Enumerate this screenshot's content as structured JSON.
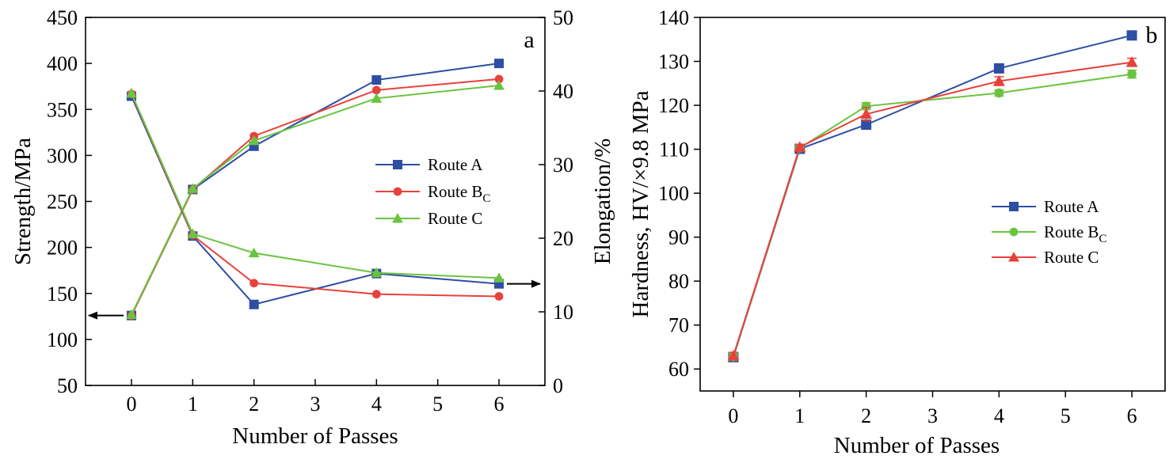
{
  "chart_data": [
    {
      "type": "line",
      "panel_label": "a",
      "x_positions": [
        0,
        1,
        2,
        4,
        6
      ],
      "xlabel": "Number of Passes",
      "xlim": [
        -0.75,
        6.75
      ],
      "x_ticks": [
        "0",
        "1",
        "2",
        "3",
        "4",
        "5",
        "6"
      ],
      "ylabel": "Strength/MPa",
      "ylim": [
        50,
        450
      ],
      "y_ticks": [
        "50",
        "100",
        "150",
        "200",
        "250",
        "300",
        "350",
        "400",
        "450"
      ],
      "y2label": "Elongation/%",
      "y2lim": [
        0,
        50
      ],
      "y2_ticks": [
        "0",
        "10",
        "20",
        "30",
        "40",
        "50"
      ],
      "legend": {
        "placement": "center-right",
        "entries": [
          {
            "text": "Route A",
            "sub": ""
          },
          {
            "text": "Route B",
            "sub": "C"
          },
          {
            "text": "Route C",
            "sub": ""
          }
        ]
      },
      "series": [
        {
          "name": "Route A",
          "axis": "left",
          "group": "strength",
          "color": "#2e4ea3",
          "marker": "square",
          "values": [
            126,
            263,
            310,
            382,
            400
          ]
        },
        {
          "name": "Route B_C",
          "axis": "left",
          "group": "strength",
          "color": "#e8413b",
          "marker": "circle",
          "values": [
            126,
            263,
            321,
            371,
            383
          ]
        },
        {
          "name": "Route C",
          "axis": "left",
          "group": "strength",
          "color": "#6ac43f",
          "marker": "triangle",
          "values": [
            127,
            264,
            316,
            362,
            376
          ]
        },
        {
          "name": "Route A",
          "axis": "right",
          "group": "elongation",
          "color": "#2e4ea3",
          "marker": "square",
          "values": [
            39.3,
            20.3,
            11.0,
            15.2,
            13.8
          ]
        },
        {
          "name": "Route B_C",
          "axis": "right",
          "group": "elongation",
          "color": "#e8413b",
          "marker": "circle",
          "values": [
            39.6,
            20.4,
            13.9,
            12.4,
            12.1
          ]
        },
        {
          "name": "Route C",
          "axis": "right",
          "group": "elongation",
          "color": "#6ac43f",
          "marker": "triangle",
          "values": [
            39.7,
            20.6,
            18.0,
            15.3,
            14.6
          ]
        }
      ],
      "arrows": [
        {
          "target_axis": "left",
          "from": [
            0,
            126
          ],
          "to": [
            -0.75,
            126
          ]
        },
        {
          "target_axis": "right",
          "from": [
            6.0,
            13.8
          ],
          "to": [
            6.75,
            13.8
          ]
        }
      ]
    },
    {
      "type": "line",
      "panel_label": "b",
      "x_positions": [
        0,
        1,
        2,
        4,
        6
      ],
      "xlabel": "Number of Passes",
      "xlim": [
        -0.5,
        6.5
      ],
      "x_ticks": [
        "0",
        "1",
        "2",
        "3",
        "4",
        "5",
        "6"
      ],
      "ylabel": "Hardness, HV/×9.8 MPa",
      "ylim": [
        55,
        140
      ],
      "y_ticks": [
        "60",
        "70",
        "80",
        "90",
        "100",
        "110",
        "120",
        "130",
        "140"
      ],
      "legend": {
        "placement": "center-right",
        "entries": [
          {
            "text": "Route A",
            "sub": ""
          },
          {
            "text": "Route B",
            "sub": "C"
          },
          {
            "text": "Route C",
            "sub": ""
          }
        ]
      },
      "series": [
        {
          "name": "Route A",
          "color": "#2e4ea3",
          "marker": "square",
          "values": [
            62.7,
            110.1,
            115.6,
            128.4,
            135.9
          ],
          "error": [
            0.8,
            0.6,
            0.8,
            0.8,
            0.6
          ]
        },
        {
          "name": "Route B_C",
          "color": "#6ac43f",
          "marker": "circle",
          "values": [
            62.8,
            110.3,
            119.8,
            122.8,
            127.1
          ],
          "error": [
            0.8,
            0.6,
            0.8,
            0.7,
            0.9
          ]
        },
        {
          "name": "Route C",
          "color": "#e8413b",
          "marker": "triangle",
          "values": [
            63.0,
            110.5,
            118.0,
            125.5,
            129.8
          ],
          "error": [
            0.8,
            0.6,
            1.5,
            1.0,
            0.9
          ]
        }
      ]
    }
  ]
}
